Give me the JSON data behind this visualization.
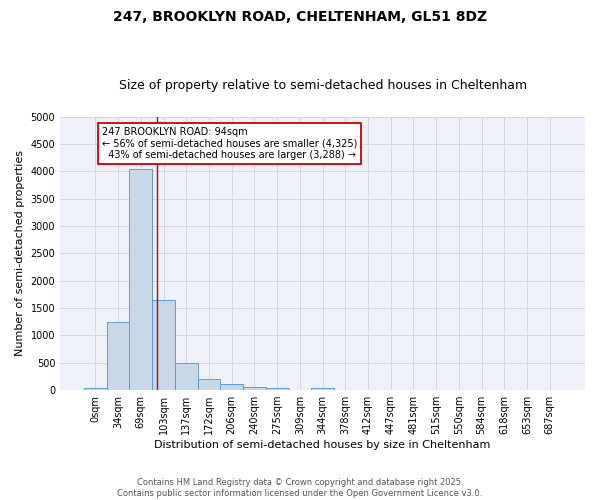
{
  "title_line1": "247, BROOKLYN ROAD, CHELTENHAM, GL51 8DZ",
  "title_line2": "Size of property relative to semi-detached houses in Cheltenham",
  "xlabel": "Distribution of semi-detached houses by size in Cheltenham",
  "ylabel": "Number of semi-detached properties",
  "bin_labels": [
    "0sqm",
    "34sqm",
    "69sqm",
    "103sqm",
    "137sqm",
    "172sqm",
    "206sqm",
    "240sqm",
    "275sqm",
    "309sqm",
    "344sqm",
    "378sqm",
    "412sqm",
    "447sqm",
    "481sqm",
    "515sqm",
    "550sqm",
    "584sqm",
    "618sqm",
    "653sqm",
    "687sqm"
  ],
  "bar_values": [
    40,
    1250,
    4050,
    1640,
    490,
    195,
    110,
    55,
    35,
    0,
    30,
    0,
    0,
    0,
    0,
    0,
    0,
    0,
    0,
    0,
    0
  ],
  "bar_color": "#c8d8e8",
  "bar_edge_color": "#5b9bd5",
  "grid_color": "#d0d8e8",
  "background_color": "#eef2f8",
  "red_line_x": 2.72,
  "property_size": "94sqm",
  "pct_smaller": 56,
  "n_smaller": 4325,
  "pct_larger": 43,
  "n_larger": 3288,
  "annotation_box_color": "#cc0000",
  "ylim": [
    0,
    5000
  ],
  "yticks": [
    0,
    500,
    1000,
    1500,
    2000,
    2500,
    3000,
    3500,
    4000,
    4500,
    5000
  ],
  "footer_line1": "Contains HM Land Registry data © Crown copyright and database right 2025.",
  "footer_line2": "Contains public sector information licensed under the Open Government Licence v3.0.",
  "title_fontsize": 10,
  "subtitle_fontsize": 9,
  "axis_label_fontsize": 8,
  "tick_fontsize": 7,
  "annotation_fontsize": 7,
  "footer_fontsize": 6
}
